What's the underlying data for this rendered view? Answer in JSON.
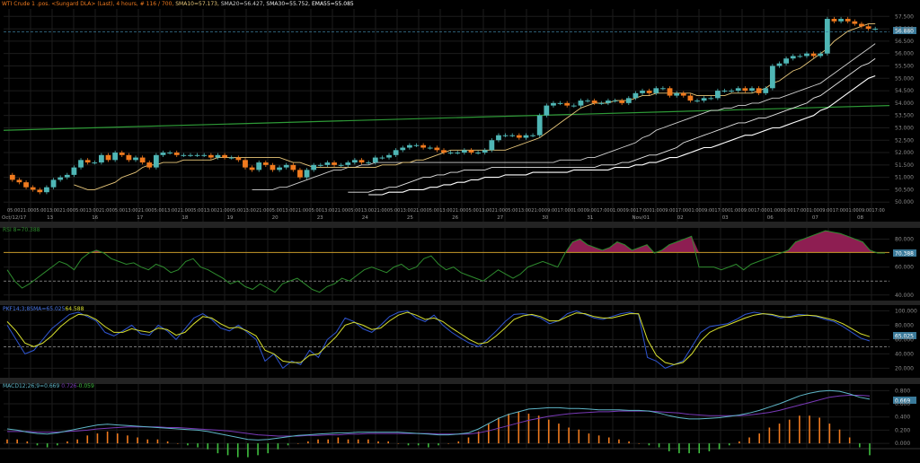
{
  "header": {
    "title": "WTI Crude 1 .pos. <Sungard DLA> (Last), 4 hours, # 116 / 700,",
    "sma10": "SMA10=57.173,",
    "sma20": "SMA20=56.427,",
    "sma30": "SMA30=55.752,",
    "ema55": "EMA55=55.085"
  },
  "colors": {
    "background": "#000000",
    "grid": "#1c1c1c",
    "candle_up": "#4fb6b5",
    "candle_down": "#f07a1e",
    "sma10": "#e8c77a",
    "sma20": "#cfcfcf",
    "sma30": "#e6e6e6",
    "ema55": "#ffffff",
    "long_ma": "#2e9a37",
    "rsi_line": "#2e8b2e",
    "rsi_fill": "#8e1e52",
    "rsi_level": "#c79a2a",
    "pk_line": "#2f55d0",
    "pk_signal": "#d8e02e",
    "macd_line": "#5fb6c8",
    "macd_signal": "#7a3ab8",
    "hist_pos": "#f07a1e",
    "hist_neg": "#3fbf3f",
    "tag_bg": "#3a7a9a"
  },
  "price_axis": {
    "labels": [
      "57.500",
      "57.000",
      "56.500",
      "56.000",
      "55.500",
      "55.000",
      "54.500",
      "54.000",
      "53.500",
      "53.000",
      "52.500",
      "52.000",
      "51.500",
      "51.000",
      "50.500",
      "50.000"
    ],
    "current_tag": "56.880"
  },
  "time_axis": {
    "hours": [
      "05:00",
      "21:00",
      "05:00",
      "13:00",
      "21:00",
      "05:00",
      "13:00",
      "21:00",
      "05:00",
      "13:00",
      "21:00",
      "05:00",
      "13:00",
      "21:00",
      "05:00",
      "13:00",
      "21:00",
      "05:00",
      "13:00",
      "21:00",
      "05:00",
      "13:00",
      "21:00",
      "05:00",
      "13:00",
      "21:00",
      "05:00",
      "13:00",
      "21:00",
      "05:00",
      "13:00",
      "21:00",
      "05:00",
      "13:00",
      "21:00",
      "05:00",
      "13:00",
      "21:00",
      "05:00",
      "13:00",
      "21:00",
      "09:00",
      "17:00",
      "01:00",
      "09:00",
      "17:00",
      "01:00",
      "09:00",
      "17:00",
      "01:00",
      "09:00",
      "17:00",
      "01:00",
      "09:00",
      "17:00",
      "01:00",
      "09:00",
      "17:00",
      "01:00",
      "09:00",
      "17:00",
      "01:00",
      "09:00",
      "17:00",
      "01:00",
      "09:00",
      "17:00"
    ],
    "dates": [
      "Oct/12/17",
      "13",
      "16",
      "17",
      "18",
      "19",
      "20",
      "23",
      "24",
      "25",
      "26",
      "27",
      "30",
      "31",
      "Nov/01",
      "02",
      "03",
      "06",
      "07",
      "08"
    ]
  },
  "rsi_panel": {
    "label": "RSI 8=70.388",
    "tag": "70.388",
    "axis_labels": [
      "80.000",
      "60.000",
      "40.000"
    ]
  },
  "pk_panel": {
    "label_prefix": "PKF14;3;8SMA=65.025",
    "label_value": "64.588",
    "tag": "65.025",
    "axis_labels": [
      "100.000",
      "80.000",
      "60.000",
      "40.000",
      "20.000"
    ]
  },
  "macd_panel": {
    "label_prefix": "MACD12;26;9=0.669",
    "label_signal": "0.726",
    "label_hist": "-0.059",
    "tag": "0.669",
    "axis_labels": [
      "0.800",
      "0.600",
      "0.400",
      "0.200",
      "0.000"
    ]
  },
  "chart_data": [
    {
      "type": "candlestick",
      "title": "WTI Crude 1 .pos. <Sungard DLA> (Last), 4 hours",
      "ylim": [
        49.9,
        57.8
      ],
      "closes": [
        50.9,
        50.8,
        50.6,
        50.5,
        50.4,
        50.6,
        50.9,
        51.0,
        51.1,
        51.4,
        51.7,
        51.6,
        51.6,
        51.9,
        51.7,
        52.0,
        51.9,
        51.7,
        51.8,
        51.6,
        51.4,
        51.9,
        52.0,
        52.0,
        51.9,
        51.9,
        51.9,
        51.9,
        51.9,
        51.8,
        51.9,
        51.8,
        51.8,
        51.7,
        51.4,
        51.3,
        51.6,
        51.5,
        51.3,
        51.4,
        51.5,
        51.3,
        51.0,
        51.3,
        51.5,
        51.5,
        51.6,
        51.5,
        51.5,
        51.6,
        51.7,
        51.6,
        51.6,
        51.8,
        51.8,
        51.9,
        52.1,
        52.2,
        52.3,
        52.3,
        52.2,
        52.2,
        52.1,
        52.0,
        52.0,
        52.0,
        52.1,
        52.0,
        52.0,
        52.1,
        52.5,
        52.7,
        52.7,
        52.7,
        52.6,
        52.7,
        52.7,
        53.5,
        53.9,
        54.0,
        54.0,
        53.9,
        53.9,
        54.1,
        54.1,
        54.0,
        54.0,
        54.1,
        54.1,
        54.0,
        54.2,
        54.4,
        54.5,
        54.4,
        54.6,
        54.6,
        54.3,
        54.4,
        54.3,
        54.1,
        54.1,
        54.2,
        54.2,
        54.5,
        54.5,
        54.5,
        54.6,
        54.5,
        54.6,
        54.4,
        54.6,
        55.5,
        55.6,
        55.8,
        55.9,
        55.9,
        56.0,
        55.9,
        56.0,
        57.4,
        57.3,
        57.4,
        57.3,
        57.2,
        57.1,
        57.0,
        57.0
      ],
      "sma10": [
        50.7,
        50.6,
        50.5,
        50.5,
        50.6,
        50.7,
        50.8,
        51.0,
        51.1,
        51.2,
        51.4,
        51.5,
        51.5,
        51.6,
        51.6,
        51.6,
        51.7,
        51.7,
        51.7,
        51.7,
        51.7,
        51.8,
        51.8,
        51.8,
        51.8,
        51.8,
        51.8,
        51.8,
        51.8,
        51.8,
        51.8,
        51.7,
        51.6,
        51.6,
        51.5,
        51.4,
        51.4,
        51.4,
        51.4,
        51.4,
        51.4,
        51.4,
        51.4,
        51.4,
        51.4,
        51.5,
        51.5,
        51.5,
        51.6,
        51.6,
        51.7,
        51.7,
        51.8,
        51.9,
        52.0,
        52.1,
        52.1,
        52.1,
        52.1,
        52.1,
        52.1,
        52.1,
        52.1,
        52.1,
        52.2,
        52.3,
        52.4,
        52.5,
        52.6,
        52.8,
        53.0,
        53.2,
        53.4,
        53.6,
        53.8,
        53.9,
        54.0,
        54.0,
        54.0,
        54.1,
        54.1,
        54.1,
        54.2,
        54.3,
        54.3,
        54.4,
        54.4,
        54.4,
        54.4,
        54.4,
        54.4,
        54.3,
        54.3,
        54.3,
        54.3,
        54.3,
        54.4,
        54.4,
        54.4,
        54.4,
        54.5,
        54.6,
        54.8,
        54.9,
        55.1,
        55.3,
        55.4,
        55.6,
        55.8,
        56.0,
        56.2,
        56.5,
        56.7,
        56.9,
        57.0,
        57.1,
        57.2,
        57.2
      ],
      "sma20": [
        50.5,
        50.5,
        50.5,
        50.5,
        50.6,
        50.6,
        50.7,
        50.8,
        50.9,
        51.0,
        51.1,
        51.2,
        51.3,
        51.3,
        51.4,
        51.4,
        51.5,
        51.5,
        51.6,
        51.6,
        51.6,
        51.6,
        51.6,
        51.6,
        51.6,
        51.6,
        51.6,
        51.6,
        51.6,
        51.6,
        51.6,
        51.6,
        51.6,
        51.6,
        51.6,
        51.6,
        51.6,
        51.6,
        51.6,
        51.6,
        51.6,
        51.6,
        51.6,
        51.6,
        51.6,
        51.7,
        51.7,
        51.7,
        51.7,
        51.8,
        51.8,
        51.9,
        52.0,
        52.1,
        52.2,
        52.3,
        52.4,
        52.6,
        52.7,
        52.9,
        53.0,
        53.1,
        53.2,
        53.3,
        53.4,
        53.5,
        53.6,
        53.7,
        53.7,
        53.8,
        53.8,
        53.9,
        53.9,
        54.0,
        54.0,
        54.1,
        54.2,
        54.2,
        54.3,
        54.4,
        54.5,
        54.6,
        54.7,
        54.8,
        55.0,
        55.2,
        55.4,
        55.6,
        55.8,
        56.0,
        56.2,
        56.4
      ],
      "sma30": [
        50.4,
        50.4,
        50.4,
        50.4,
        50.5,
        50.5,
        50.6,
        50.6,
        50.7,
        50.8,
        50.9,
        51.0,
        51.0,
        51.1,
        51.1,
        51.2,
        51.2,
        51.3,
        51.3,
        51.3,
        51.3,
        51.4,
        51.4,
        51.4,
        51.4,
        51.4,
        51.4,
        51.4,
        51.4,
        51.4,
        51.4,
        51.4,
        51.4,
        51.4,
        51.4,
        51.4,
        51.4,
        51.5,
        51.5,
        51.5,
        51.6,
        51.6,
        51.7,
        51.8,
        51.9,
        51.9,
        52.0,
        52.1,
        52.2,
        52.4,
        52.5,
        52.6,
        52.7,
        52.8,
        52.9,
        53.0,
        53.1,
        53.2,
        53.2,
        53.3,
        53.4,
        53.4,
        53.5,
        53.6,
        53.7,
        53.8,
        53.9,
        54.0,
        54.2,
        54.3,
        54.5,
        54.7,
        54.9,
        55.1,
        55.3,
        55.5,
        55.6,
        55.8
      ],
      "ema55": [
        50.3,
        50.3,
        50.3,
        50.4,
        50.4,
        50.4,
        50.5,
        50.5,
        50.5,
        50.6,
        50.6,
        50.7,
        50.7,
        50.8,
        50.8,
        50.9,
        50.9,
        51.0,
        51.0,
        51.0,
        51.1,
        51.1,
        51.1,
        51.1,
        51.2,
        51.2,
        51.2,
        51.2,
        51.2,
        51.2,
        51.3,
        51.3,
        51.3,
        51.3,
        51.3,
        51.3,
        51.4,
        51.4,
        51.4,
        51.5,
        51.5,
        51.6,
        51.6,
        51.7,
        51.8,
        51.8,
        51.9,
        52.0,
        52.1,
        52.2,
        52.2,
        52.3,
        52.4,
        52.5,
        52.6,
        52.7,
        52.7,
        52.8,
        52.9,
        53.0,
        53.0,
        53.1,
        53.2,
        53.3,
        53.4,
        53.5,
        53.7,
        53.8,
        54.0,
        54.2,
        54.4,
        54.6,
        54.8,
        55.0,
        55.1
      ],
      "long_ma": [
        52.9,
        53.9
      ]
    },
    {
      "type": "line",
      "title": "RSI 8",
      "ylim": [
        36,
        88
      ],
      "level": 70.388,
      "dashed_level": 50,
      "values": [
        58,
        50,
        45,
        48,
        52,
        56,
        60,
        64,
        62,
        58,
        66,
        70,
        72,
        70,
        66,
        64,
        62,
        63,
        60,
        58,
        62,
        60,
        56,
        58,
        64,
        66,
        60,
        58,
        55,
        52,
        48,
        50,
        46,
        44,
        48,
        45,
        42,
        48,
        50,
        52,
        48,
        44,
        42,
        46,
        48,
        52,
        50,
        54,
        58,
        60,
        58,
        56,
        60,
        62,
        58,
        60,
        66,
        68,
        62,
        58,
        60,
        56,
        54,
        52,
        50,
        54,
        58,
        55,
        52,
        55,
        60,
        62,
        64,
        62,
        60,
        70,
        78,
        80,
        76,
        74,
        72,
        74,
        78,
        76,
        72,
        74,
        76,
        70,
        72,
        76,
        78,
        80,
        82,
        60,
        60,
        60,
        58,
        60,
        62,
        58,
        62,
        64,
        66,
        68,
        70,
        72,
        78,
        80,
        82,
        84,
        86,
        85,
        84,
        82,
        80,
        78,
        72,
        70,
        70
      ]
    },
    {
      "type": "line",
      "title": "PKF14;3;8SMA",
      "ylim": [
        8,
        108
      ],
      "dashed_level": 50,
      "k_values": [
        80,
        60,
        40,
        45,
        60,
        75,
        85,
        95,
        98,
        92,
        86,
        70,
        65,
        72,
        80,
        68,
        66,
        80,
        72,
        60,
        75,
        90,
        96,
        88,
        76,
        72,
        80,
        70,
        60,
        30,
        40,
        20,
        30,
        25,
        45,
        35,
        60,
        70,
        90,
        85,
        75,
        70,
        80,
        92,
        98,
        100,
        90,
        85,
        94,
        80,
        70,
        62,
        55,
        50,
        60,
        72,
        85,
        95,
        96,
        94,
        90,
        82,
        86,
        96,
        100,
        95,
        90,
        88,
        92,
        96,
        98,
        95,
        35,
        30,
        20,
        25,
        30,
        50,
        70,
        78,
        80,
        82,
        88,
        95,
        98,
        96,
        94,
        90,
        92,
        95,
        94,
        92,
        88,
        85,
        78,
        70,
        62,
        58
      ],
      "signal_values": [
        85,
        72,
        55,
        50,
        55,
        65,
        78,
        88,
        95,
        94,
        88,
        78,
        70,
        70,
        75,
        72,
        70,
        76,
        74,
        66,
        70,
        82,
        92,
        90,
        82,
        76,
        77,
        72,
        65,
        45,
        40,
        30,
        28,
        28,
        38,
        40,
        52,
        64,
        80,
        84,
        80,
        74,
        76,
        86,
        94,
        98,
        94,
        88,
        90,
        85,
        76,
        68,
        60,
        54,
        56,
        65,
        76,
        88,
        93,
        95,
        92,
        86,
        86,
        92,
        97,
        96,
        92,
        90,
        90,
        93,
        96,
        96,
        60,
        38,
        28,
        25,
        28,
        40,
        58,
        70,
        76,
        80,
        85,
        90,
        94,
        96,
        95,
        92,
        91,
        93,
        94,
        93,
        90,
        87,
        82,
        75,
        68,
        64
      ]
    },
    {
      "type": "line",
      "title": "MACD12;26;9",
      "ylim": [
        -0.08,
        0.9
      ],
      "macd_values": [
        0.22,
        0.2,
        0.17,
        0.15,
        0.14,
        0.16,
        0.19,
        0.22,
        0.25,
        0.28,
        0.29,
        0.28,
        0.27,
        0.26,
        0.25,
        0.24,
        0.23,
        0.22,
        0.21,
        0.2,
        0.18,
        0.15,
        0.12,
        0.09,
        0.06,
        0.05,
        0.06,
        0.08,
        0.1,
        0.12,
        0.13,
        0.14,
        0.15,
        0.16,
        0.16,
        0.17,
        0.17,
        0.17,
        0.17,
        0.17,
        0.16,
        0.15,
        0.14,
        0.13,
        0.13,
        0.14,
        0.16,
        0.22,
        0.3,
        0.38,
        0.44,
        0.48,
        0.52,
        0.53,
        0.54,
        0.54,
        0.53,
        0.53,
        0.52,
        0.51,
        0.51,
        0.51,
        0.5,
        0.5,
        0.49,
        0.46,
        0.42,
        0.39,
        0.37,
        0.37,
        0.38,
        0.39,
        0.41,
        0.43,
        0.46,
        0.5,
        0.55,
        0.6,
        0.66,
        0.72,
        0.76,
        0.79,
        0.8,
        0.79,
        0.75,
        0.7,
        0.67
      ],
      "signal_values": [
        0.18,
        0.18,
        0.18,
        0.17,
        0.17,
        0.17,
        0.18,
        0.19,
        0.2,
        0.22,
        0.23,
        0.24,
        0.25,
        0.25,
        0.25,
        0.25,
        0.24,
        0.24,
        0.23,
        0.22,
        0.21,
        0.2,
        0.19,
        0.17,
        0.15,
        0.13,
        0.12,
        0.11,
        0.11,
        0.11,
        0.12,
        0.12,
        0.13,
        0.13,
        0.14,
        0.14,
        0.15,
        0.15,
        0.15,
        0.15,
        0.15,
        0.15,
        0.15,
        0.14,
        0.14,
        0.14,
        0.14,
        0.16,
        0.19,
        0.23,
        0.27,
        0.31,
        0.35,
        0.38,
        0.41,
        0.43,
        0.45,
        0.46,
        0.47,
        0.48,
        0.48,
        0.49,
        0.49,
        0.49,
        0.49,
        0.48,
        0.47,
        0.46,
        0.44,
        0.43,
        0.42,
        0.42,
        0.42,
        0.42,
        0.43,
        0.45,
        0.47,
        0.5,
        0.54,
        0.58,
        0.62,
        0.66,
        0.7,
        0.72,
        0.73,
        0.73,
        0.72
      ],
      "histogram": [
        0.02,
        0.02,
        0.01,
        -0.01,
        -0.02,
        -0.01,
        0.01,
        0.02,
        0.04,
        0.05,
        0.06,
        0.05,
        0.04,
        0.03,
        0.02,
        0.02,
        0.01,
        0.0,
        -0.01,
        -0.02,
        -0.03,
        -0.05,
        -0.06,
        -0.07,
        -0.07,
        -0.06,
        -0.05,
        -0.03,
        -0.01,
        0.0,
        0.01,
        0.02,
        0.02,
        0.03,
        0.02,
        0.02,
        0.02,
        0.01,
        0.01,
        0.0,
        -0.01,
        -0.01,
        -0.02,
        -0.01,
        0.0,
        0.01,
        0.03,
        0.06,
        0.1,
        0.13,
        0.15,
        0.16,
        0.15,
        0.14,
        0.12,
        0.1,
        0.08,
        0.07,
        0.05,
        0.04,
        0.03,
        0.02,
        0.01,
        0.0,
        -0.01,
        -0.02,
        -0.04,
        -0.05,
        -0.05,
        -0.05,
        -0.04,
        -0.03,
        -0.01,
        0.01,
        0.03,
        0.05,
        0.08,
        0.1,
        0.12,
        0.14,
        0.14,
        0.13,
        0.1,
        0.07,
        0.03,
        -0.02,
        -0.06
      ]
    }
  ]
}
